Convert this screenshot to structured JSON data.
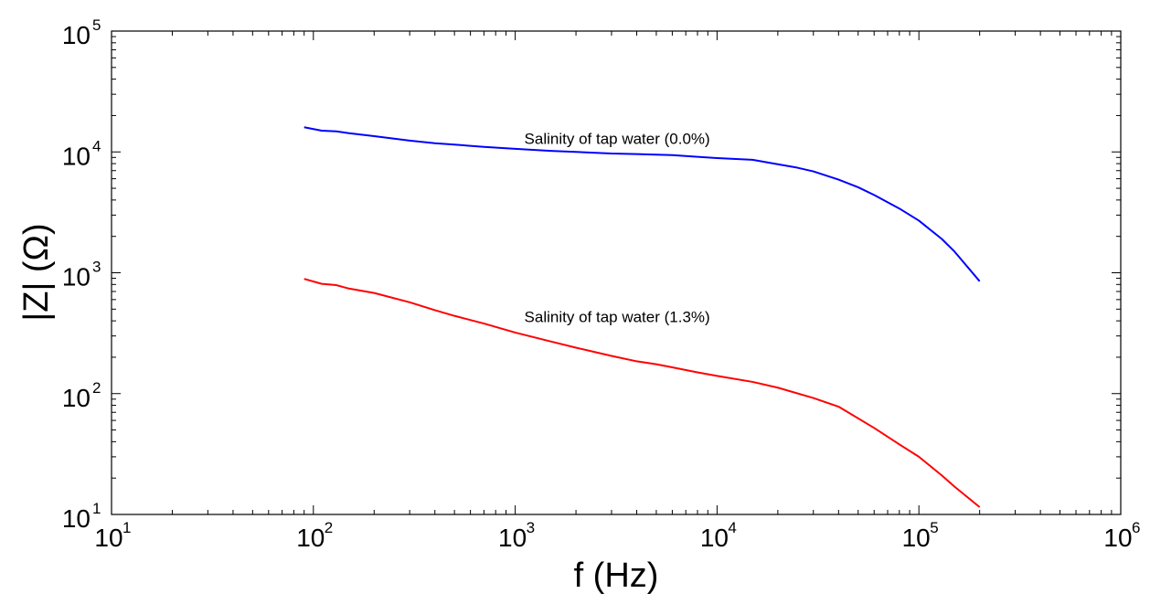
{
  "chart_data": {
    "type": "line",
    "title": "",
    "xlabel": "f (Hz)",
    "ylabel": "|Z| (Ω)",
    "xscale": "log",
    "yscale": "log",
    "xlim": [
      10,
      1000000
    ],
    "ylim": [
      10,
      100000
    ],
    "grid": false,
    "x_ticks": [
      {
        "base": "10",
        "exp": "1"
      },
      {
        "base": "10",
        "exp": "2"
      },
      {
        "base": "10",
        "exp": "3"
      },
      {
        "base": "10",
        "exp": "4"
      },
      {
        "base": "10",
        "exp": "5"
      },
      {
        "base": "10",
        "exp": "6"
      }
    ],
    "y_ticks": [
      {
        "base": "10",
        "exp": "1"
      },
      {
        "base": "10",
        "exp": "2"
      },
      {
        "base": "10",
        "exp": "3"
      },
      {
        "base": "10",
        "exp": "4"
      },
      {
        "base": "10",
        "exp": "5"
      }
    ],
    "series": [
      {
        "color": "#0000ff",
        "x": [
          90,
          110,
          130,
          150,
          200,
          300,
          400,
          500,
          700,
          1000,
          1500,
          2000,
          3000,
          4000,
          5000,
          6000,
          8000,
          10000,
          15000,
          20000,
          25000,
          30000,
          40000,
          50000,
          60000,
          80000,
          100000,
          130000,
          150000,
          200000
        ],
        "y": [
          16000,
          15000,
          14800,
          14300,
          13500,
          12400,
          11800,
          11500,
          11000,
          10600,
          10200,
          10000,
          9700,
          9600,
          9500,
          9400,
          9100,
          8900,
          8600,
          7900,
          7400,
          6900,
          5900,
          5100,
          4400,
          3400,
          2700,
          1900,
          1500,
          850
        ]
      },
      {
        "color": "#ff0000",
        "x": [
          90,
          110,
          130,
          150,
          200,
          300,
          400,
          500,
          700,
          1000,
          1500,
          2000,
          3000,
          4000,
          5000,
          6000,
          8000,
          10000,
          15000,
          20000,
          30000,
          40000,
          60000,
          80000,
          100000,
          130000,
          150000,
          200000
        ],
        "y": [
          890,
          810,
          790,
          740,
          680,
          570,
          490,
          440,
          380,
          320,
          270,
          240,
          205,
          185,
          175,
          165,
          150,
          140,
          125,
          112,
          92,
          78,
          52,
          38,
          30,
          21,
          17,
          11.5
        ]
      }
    ],
    "annotations": [
      {
        "text": "Salinity of tap water (0.0%)",
        "x": 3200,
        "y": 11600
      },
      {
        "text": "Salinity of tap water (1.3%)",
        "x": 3200,
        "y": 390
      }
    ]
  }
}
